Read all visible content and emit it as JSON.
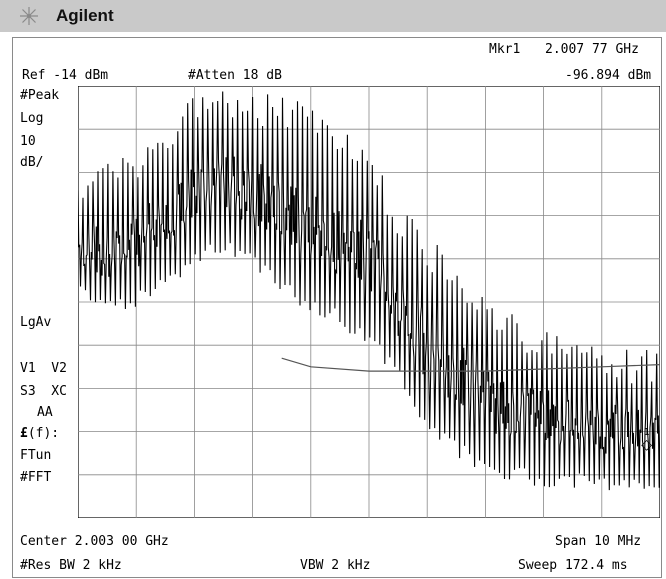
{
  "brand": {
    "name": "Agilent",
    "logo_icon": "spark-icon"
  },
  "marker": {
    "label": "Mkr1",
    "frequency": "2.007 77 GHz",
    "amplitude": "-96.894 dBm",
    "glyph": "◇",
    "number": "1"
  },
  "header": {
    "ref_level": "Ref -14 dBm",
    "attenuation": "#Atten 18 dB"
  },
  "left_panel": {
    "detector": "#Peak",
    "scale_type": "Log",
    "scale_value": "10",
    "scale_unit": "dB/",
    "averaging": "LgAv",
    "traces": "V1  V2",
    "trigger": "S3  XC",
    "aa": "AA",
    "ftun_prefix": "£",
    "ftun_suffix": "(f):",
    "ftun": "FTun",
    "fft": "#FFT"
  },
  "reference_star": "*",
  "footer": {
    "center": "Center 2.003 00 GHz",
    "span": "Span 10 MHz",
    "res_bw": "#Res BW 2 kHz",
    "vbw": "VBW 2 kHz",
    "sweep": "Sweep 172.4 ms"
  },
  "chart_data": {
    "type": "line",
    "x_unit": "GHz",
    "y_unit": "dBm",
    "xlim": [
      1.998,
      2.008
    ],
    "ylim": [
      -114,
      -14
    ],
    "x_divisions": 10,
    "y_divisions": 10,
    "grid": true,
    "envelope": {
      "x": [
        1.998,
        1.9985,
        1.999,
        1.9995,
        2.0,
        2.0005,
        2.001,
        2.0015,
        2.002,
        2.0025,
        2.003,
        2.0035,
        2.004,
        2.0045,
        2.005,
        2.0055,
        2.006,
        2.0065,
        2.007,
        2.0075,
        2.008
      ],
      "peak": [
        -32,
        -30,
        -28,
        -23,
        -16,
        -14,
        -14,
        -15,
        -18,
        -22,
        -27,
        -40,
        -48,
        -55,
        -62,
        -67,
        -69,
        -71,
        -73,
        -75,
        -75
      ],
      "floor": [
        -64,
        -68,
        -66,
        -61,
        -56,
        -53,
        -57,
        -63,
        -66,
        -70,
        -74,
        -83,
        -94,
        -100,
        -104,
        -106,
        -107,
        -107,
        -108,
        -108,
        -108
      ]
    },
    "steady_trace": {
      "x": [
        2.0015,
        2.002,
        2.003,
        2.004,
        2.005,
        2.006,
        2.007,
        2.008
      ],
      "y": [
        -77,
        -79,
        -80,
        -80,
        -80,
        -79.5,
        -79,
        -78.5
      ]
    },
    "marker_1": {
      "x": 2.00777,
      "y": -96.894
    }
  }
}
